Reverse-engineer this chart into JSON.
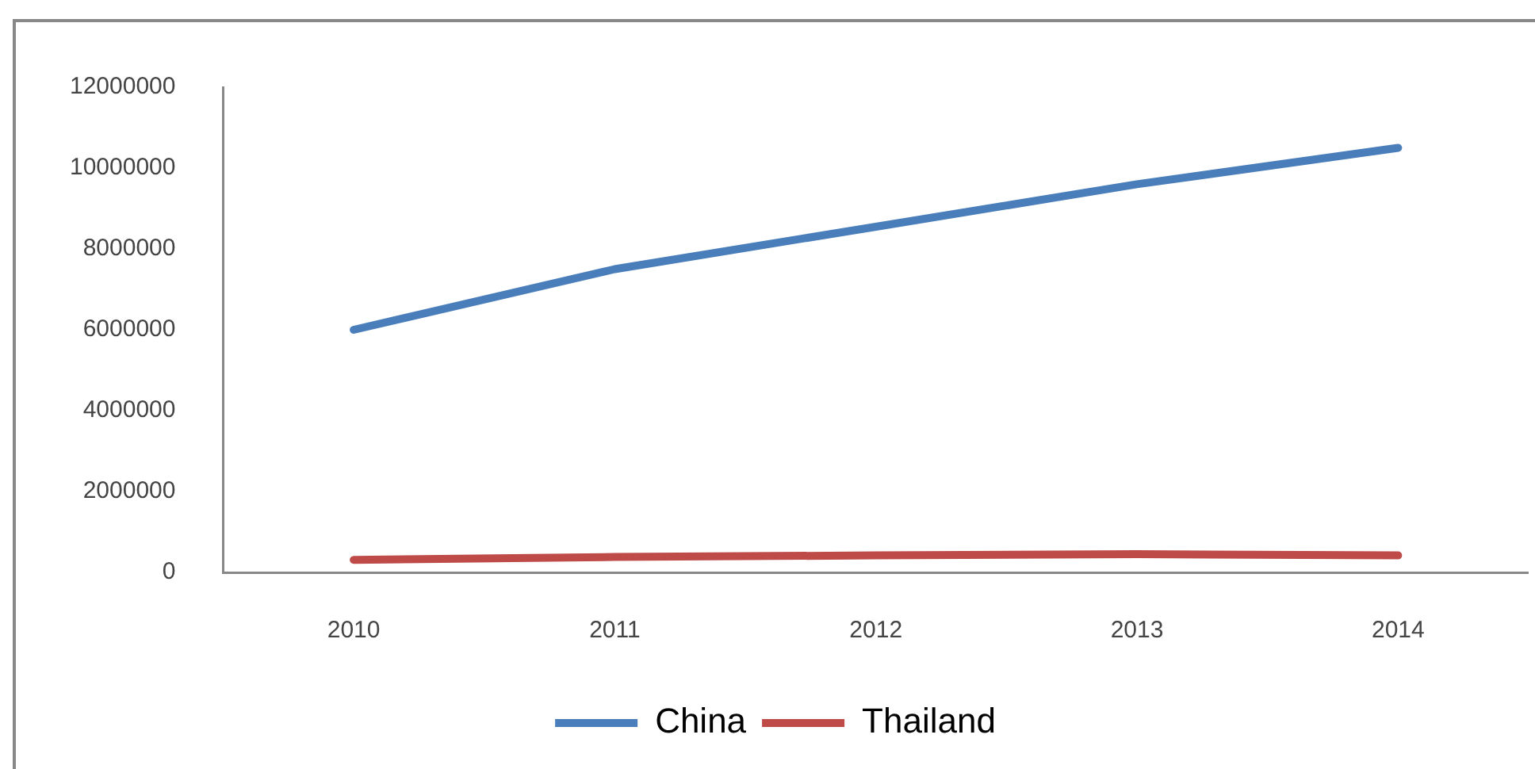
{
  "chart_data": {
    "type": "line",
    "categories": [
      "2010",
      "2011",
      "2012",
      "2013",
      "2014"
    ],
    "series": [
      {
        "name": "China",
        "color": "#4a7ebb",
        "values": [
          6000000,
          7500000,
          8550000,
          9600000,
          10500000
        ]
      },
      {
        "name": "Thailand",
        "color": "#be4b48",
        "values": [
          310000,
          380000,
          420000,
          450000,
          420000
        ]
      }
    ],
    "ylim": [
      0,
      12000000
    ],
    "yticks": [
      0,
      2000000,
      4000000,
      6000000,
      8000000,
      10000000,
      12000000
    ],
    "grid": false,
    "legend": "bottom",
    "marker": "none",
    "line_style": "solid"
  }
}
